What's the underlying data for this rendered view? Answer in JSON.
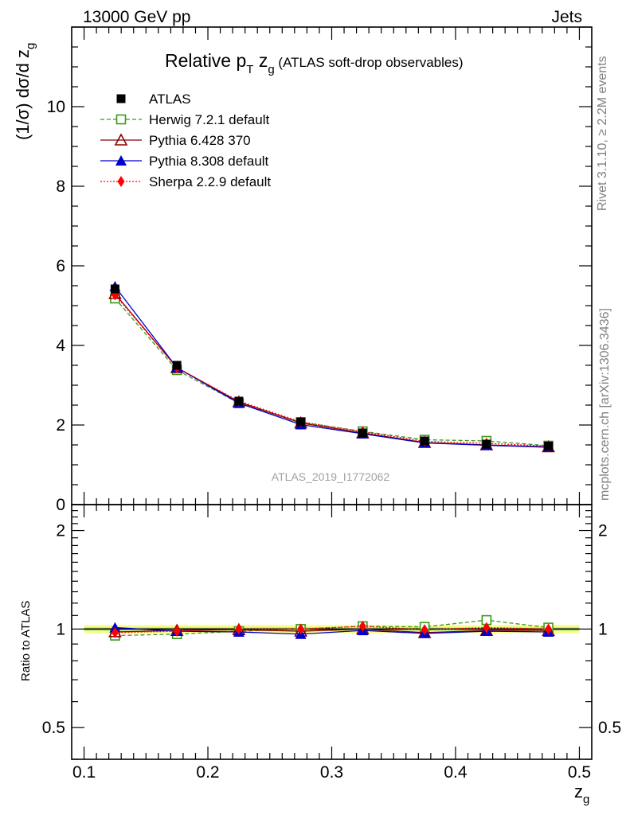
{
  "header": {
    "left": "13000 GeV pp",
    "right": "Jets"
  },
  "title": {
    "main": "Relative p",
    "main_sub": "T",
    "var": " z",
    "var_sub": "g",
    "paren": " (ATLAS soft-drop observables)"
  },
  "side_labels": {
    "rivet": "Rivet 3.1.10, ≥ 2.2M events",
    "mcplots": "mcplots.cern.ch [arXiv:1306.3436]"
  },
  "analysis_id": "ATLAS_2019_I1772062",
  "colors": {
    "atlas": "#000000",
    "herwig": "#3a9a1a",
    "pythia6": "#8b0000",
    "pythia8": "#0000cc",
    "sherpa": "#ff0000",
    "band_outer": "#ffff88",
    "band_inner": "#c8f080"
  },
  "chart_data": [
    {
      "type": "line",
      "panel": "main",
      "title": "Relative pT zg (ATLAS soft-drop observables)",
      "xlabel": "z_g",
      "ylabel": "(1/σ) dσ/d z_g",
      "xlim": [
        0.09,
        0.51
      ],
      "ylim": [
        0,
        12
      ],
      "yticks": [
        0,
        2,
        4,
        6,
        8,
        10
      ],
      "yticklabels": [
        "0",
        "2",
        "4",
        "6",
        "8",
        "10"
      ],
      "legend_position": "top-left",
      "x": [
        0.125,
        0.175,
        0.225,
        0.275,
        0.325,
        0.375,
        0.425,
        0.475
      ],
      "series": [
        {
          "name": "ATLAS",
          "key": "atlas",
          "style": "data",
          "values": [
            5.42,
            3.5,
            2.6,
            2.08,
            1.8,
            1.6,
            1.52,
            1.47
          ]
        },
        {
          "name": "Herwig 7.2.1 default",
          "key": "herwig",
          "style": "dashed",
          "values": [
            5.18,
            3.38,
            2.55,
            2.07,
            1.84,
            1.63,
            1.6,
            1.48
          ]
        },
        {
          "name": "Pythia 6.428 370",
          "key": "pythia6",
          "style": "solid",
          "values": [
            5.3,
            3.44,
            2.58,
            2.05,
            1.8,
            1.56,
            1.5,
            1.45
          ]
        },
        {
          "name": "Pythia 8.308 default",
          "key": "pythia8",
          "style": "solid",
          "values": [
            5.48,
            3.44,
            2.55,
            2.01,
            1.78,
            1.55,
            1.49,
            1.44
          ]
        },
        {
          "name": "Sherpa 2.2.9 default",
          "key": "sherpa",
          "style": "dotted",
          "values": [
            5.27,
            3.44,
            2.6,
            2.08,
            1.83,
            1.59,
            1.54,
            1.47
          ]
        }
      ]
    },
    {
      "type": "line",
      "panel": "ratio",
      "xlabel": "z_g",
      "ylabel": "Ratio to ATLAS",
      "xlim": [
        0.09,
        0.51
      ],
      "xticks": [
        0.1,
        0.2,
        0.3,
        0.4,
        0.5
      ],
      "xticklabels": [
        "0.1",
        "0.2",
        "0.3",
        "0.4",
        "0.5"
      ],
      "ylim": [
        0.4,
        2.4
      ],
      "yscale": "log",
      "yticks": [
        0.5,
        1,
        2
      ],
      "yticklabels": [
        "0.5",
        "1",
        "2"
      ],
      "band": {
        "lo": 0.97,
        "hi": 1.03,
        "inner_lo": 0.985,
        "inner_hi": 1.015
      },
      "x": [
        0.125,
        0.175,
        0.225,
        0.275,
        0.325,
        0.375,
        0.425,
        0.475
      ],
      "series": [
        {
          "name": "Herwig 7.2.1 default",
          "key": "herwig",
          "style": "dashed",
          "values": [
            0.955,
            0.965,
            0.985,
            1.0,
            1.02,
            1.015,
            1.065,
            1.01
          ]
        },
        {
          "name": "Pythia 6.428 370",
          "key": "pythia6",
          "style": "solid",
          "values": [
            0.98,
            0.99,
            0.995,
            0.985,
            1.0,
            0.975,
            0.99,
            0.99
          ]
        },
        {
          "name": "Pythia 8.308 default",
          "key": "pythia8",
          "style": "solid",
          "values": [
            1.01,
            0.985,
            0.98,
            0.965,
            0.99,
            0.97,
            0.985,
            0.98
          ]
        },
        {
          "name": "Sherpa 2.2.9 default",
          "key": "sherpa",
          "style": "dotted",
          "values": [
            0.975,
            0.985,
            1.0,
            1.0,
            1.02,
            0.995,
            1.01,
            1.0
          ]
        }
      ]
    }
  ]
}
